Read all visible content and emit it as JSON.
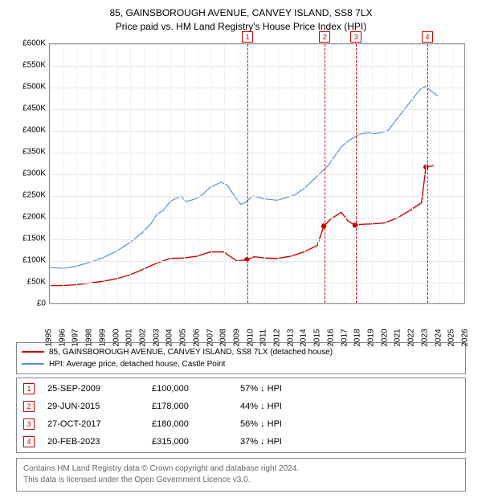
{
  "header": {
    "line1": "85, GAINSBOROUGH AVENUE, CANVEY ISLAND, SS8 7LX",
    "line2": "Price paid vs. HM Land Registry's House Price Index (HPI)"
  },
  "chart": {
    "type": "line",
    "background": "#ffffff",
    "grid_color": "#e7e7e7",
    "border_color": "#888888",
    "x": {
      "min": 1995,
      "max": 2026,
      "ticks": [
        1995,
        1996,
        1997,
        1998,
        1999,
        2000,
        2001,
        2002,
        2003,
        2004,
        2005,
        2006,
        2007,
        2008,
        2009,
        2010,
        2011,
        2012,
        2013,
        2014,
        2015,
        2016,
        2017,
        2018,
        2019,
        2020,
        2021,
        2022,
        2023,
        2024,
        2025,
        2026
      ]
    },
    "y": {
      "min": 0,
      "max": 600000,
      "ticks": [
        0,
        50000,
        100000,
        150000,
        200000,
        250000,
        300000,
        350000,
        400000,
        450000,
        500000,
        550000,
        600000
      ],
      "labels": [
        "£0",
        "£50K",
        "£100K",
        "£150K",
        "£200K",
        "£250K",
        "£300K",
        "£350K",
        "£400K",
        "£450K",
        "£500K",
        "£550K",
        "£600K"
      ]
    },
    "series": [
      {
        "id": "hpi",
        "label": "HPI: Average price, detached house, Castle Point",
        "color": "#5b8fd6",
        "width": 1.2,
        "points": [
          [
            1995.0,
            82000
          ],
          [
            1996.0,
            80000
          ],
          [
            1997.0,
            85000
          ],
          [
            1998.0,
            94000
          ],
          [
            1999.0,
            105000
          ],
          [
            2000.0,
            120000
          ],
          [
            2001.0,
            140000
          ],
          [
            2002.0,
            165000
          ],
          [
            2002.6,
            185000
          ],
          [
            2003.0,
            205000
          ],
          [
            2003.5,
            215000
          ],
          [
            2004.0,
            235000
          ],
          [
            2004.8,
            248000
          ],
          [
            2005.2,
            235000
          ],
          [
            2005.8,
            240000
          ],
          [
            2006.3,
            248000
          ],
          [
            2007.0,
            268000
          ],
          [
            2007.8,
            280000
          ],
          [
            2008.3,
            272000
          ],
          [
            2008.8,
            248000
          ],
          [
            2009.3,
            228000
          ],
          [
            2009.7,
            235000
          ],
          [
            2010.2,
            248000
          ],
          [
            2010.8,
            243000
          ],
          [
            2011.3,
            240000
          ],
          [
            2012.0,
            238000
          ],
          [
            2012.8,
            245000
          ],
          [
            2013.3,
            250000
          ],
          [
            2014.0,
            265000
          ],
          [
            2014.7,
            285000
          ],
          [
            2015.2,
            300000
          ],
          [
            2015.8,
            318000
          ],
          [
            2016.3,
            340000
          ],
          [
            2016.8,
            362000
          ],
          [
            2017.3,
            375000
          ],
          [
            2017.8,
            385000
          ],
          [
            2018.3,
            392000
          ],
          [
            2018.8,
            395000
          ],
          [
            2019.3,
            392000
          ],
          [
            2019.8,
            395000
          ],
          [
            2020.3,
            400000
          ],
          [
            2020.8,
            420000
          ],
          [
            2021.3,
            440000
          ],
          [
            2021.8,
            460000
          ],
          [
            2022.3,
            480000
          ],
          [
            2022.8,
            498000
          ],
          [
            2023.1,
            502000
          ],
          [
            2023.5,
            492000
          ],
          [
            2024.0,
            480000
          ]
        ]
      },
      {
        "id": "paid",
        "label": "85, GAINSBOROUGH AVENUE, CANVEY ISLAND, SS8 7LX (detached house)",
        "color": "#cc0000",
        "width": 1.4,
        "points": [
          [
            1995.0,
            40000
          ],
          [
            1996.0,
            40000
          ],
          [
            1997.0,
            42000
          ],
          [
            1998.0,
            46000
          ],
          [
            1999.0,
            50000
          ],
          [
            2000.0,
            56000
          ],
          [
            2001.0,
            65000
          ],
          [
            2002.0,
            78000
          ],
          [
            2003.0,
            92000
          ],
          [
            2004.0,
            103000
          ],
          [
            2005.0,
            104000
          ],
          [
            2006.0,
            108000
          ],
          [
            2007.0,
            118000
          ],
          [
            2008.0,
            118000
          ],
          [
            2009.0,
            97000
          ],
          [
            2009.73,
            100000
          ],
          [
            2010.3,
            107000
          ],
          [
            2011.0,
            104000
          ],
          [
            2012.0,
            103000
          ],
          [
            2013.0,
            108000
          ],
          [
            2014.0,
            118000
          ],
          [
            2015.0,
            133000
          ],
          [
            2015.49,
            178000
          ],
          [
            2016.0,
            194000
          ],
          [
            2016.8,
            210000
          ],
          [
            2017.3,
            190000
          ],
          [
            2017.82,
            180000
          ],
          [
            2018.3,
            182000
          ],
          [
            2019.0,
            183000
          ],
          [
            2020.0,
            185000
          ],
          [
            2021.0,
            197000
          ],
          [
            2022.0,
            216000
          ],
          [
            2022.8,
            232000
          ],
          [
            2023.13,
            315000
          ],
          [
            2023.7,
            318000
          ]
        ],
        "markers": [
          [
            2009.73,
            100000
          ],
          [
            2015.49,
            178000
          ],
          [
            2017.82,
            180000
          ],
          [
            2023.13,
            315000
          ]
        ]
      }
    ],
    "events": [
      {
        "n": "1",
        "x": 2009.73
      },
      {
        "n": "2",
        "x": 2015.49
      },
      {
        "n": "3",
        "x": 2017.82
      },
      {
        "n": "4",
        "x": 2023.13
      }
    ]
  },
  "legend": {
    "items": [
      {
        "color": "#cc0000",
        "label": "85, GAINSBOROUGH AVENUE, CANVEY ISLAND, SS8 7LX (detached house)"
      },
      {
        "color": "#5b8fd6",
        "label": "HPI: Average price, detached house, Castle Point"
      }
    ]
  },
  "events_table": [
    {
      "n": "1",
      "date": "25-SEP-2009",
      "price": "£100,000",
      "delta": "57% ↓ HPI"
    },
    {
      "n": "2",
      "date": "29-JUN-2015",
      "price": "£178,000",
      "delta": "44% ↓ HPI"
    },
    {
      "n": "3",
      "date": "27-OCT-2017",
      "price": "£180,000",
      "delta": "56% ↓ HPI"
    },
    {
      "n": "4",
      "date": "20-FEB-2023",
      "price": "£315,000",
      "delta": "37% ↓ HPI"
    }
  ],
  "footer": {
    "line1": "Contains HM Land Registry data © Crown copyright and database right 2024.",
    "line2": "This data is licensed under the Open Government Licence v3.0."
  }
}
